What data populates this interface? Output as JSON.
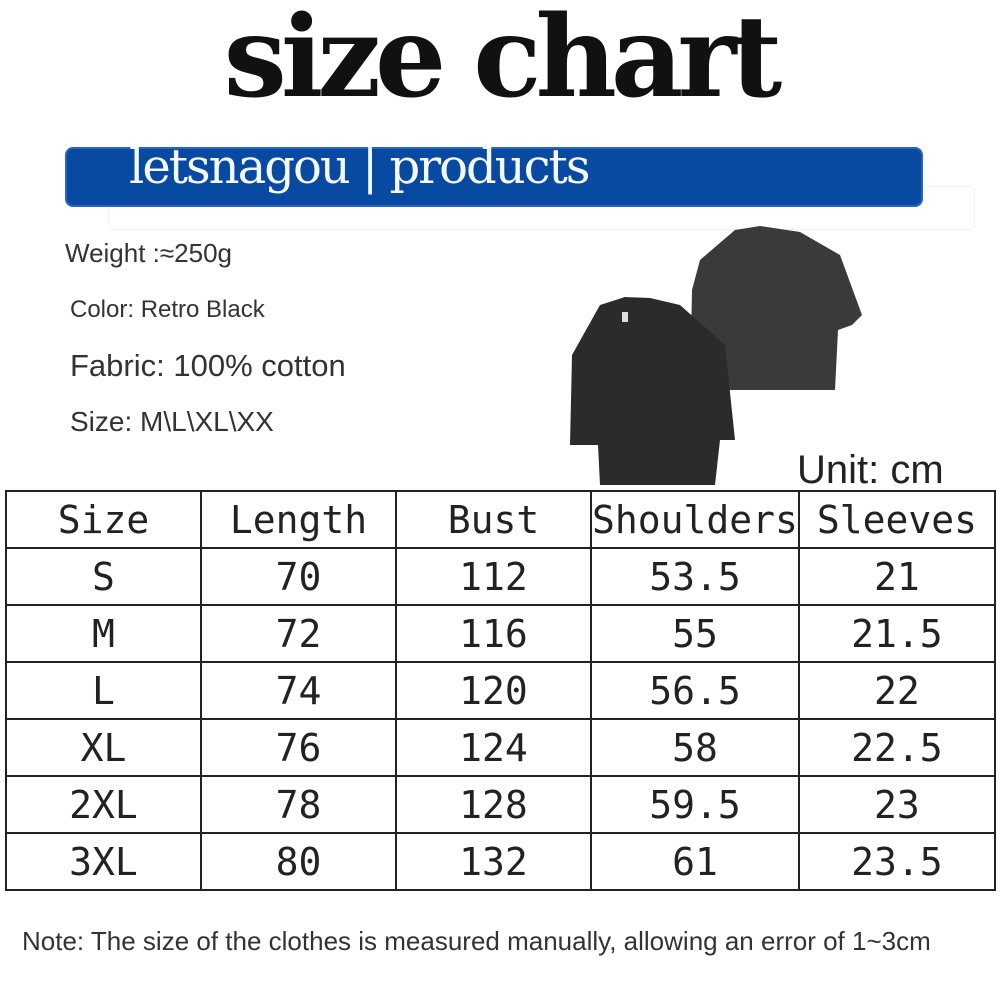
{
  "title": "size chart",
  "banner": "letsnagou | products",
  "specs": {
    "weight": "Weight :≈250g",
    "color": "Color: Retro Black",
    "fabric": "Fabric: 100% cotton",
    "size": "Size: M\\L\\XL\\XX"
  },
  "unit": "Unit: cm",
  "table": {
    "headers": [
      "Size",
      "Length",
      "Bust",
      "Shoulders",
      "Sleeves"
    ],
    "rows": [
      [
        "S",
        "70",
        "112",
        "53.5",
        "21"
      ],
      [
        "M",
        "72",
        "116",
        "55",
        "21.5"
      ],
      [
        "L",
        "74",
        "120",
        "56.5",
        "22"
      ],
      [
        "XL",
        "76",
        "124",
        "58",
        "22.5"
      ],
      [
        "2XL",
        "78",
        "128",
        "59.5",
        "23"
      ],
      [
        "3XL",
        "80",
        "132",
        "61",
        "23.5"
      ]
    ]
  },
  "note": "Note: The size of the clothes is measured manually, allowing an error of 1~3cm",
  "colors": {
    "banner": "#0849a1",
    "shirt": "#2e2e2e"
  }
}
